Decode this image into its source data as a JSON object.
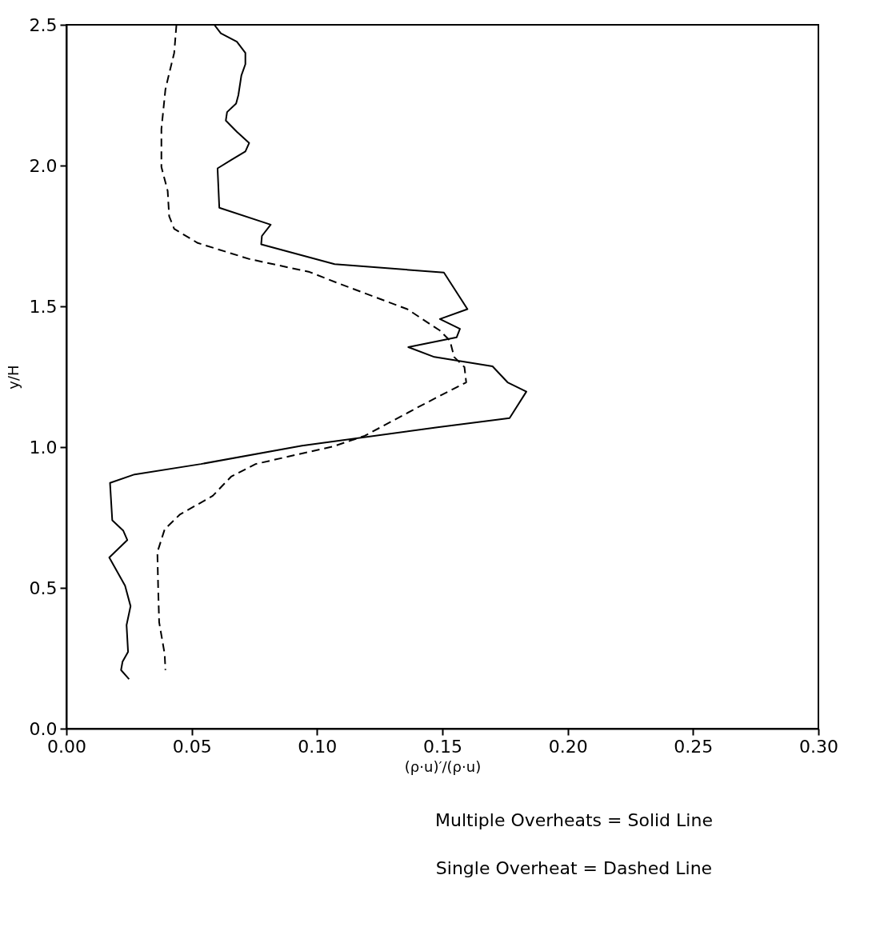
{
  "chart_data": {
    "type": "line",
    "xlabel": "(ρ·u)′/(ρ·u)",
    "ylabel": "y/H",
    "annotations": [
      "Multiple Overheats = Solid Line",
      "Single Overheat = Dashed Line"
    ],
    "xlim": [
      0,
      0.3
    ],
    "ylim": [
      0,
      2.5
    ],
    "xticks": [
      {
        "value": 0,
        "label": "0.00"
      },
      {
        "value": 0.05,
        "label": "0.05"
      },
      {
        "value": 0.1,
        "label": "0.10"
      },
      {
        "value": 0.15,
        "label": "0.15"
      },
      {
        "value": 0.2,
        "label": "0.20"
      },
      {
        "value": 0.25,
        "label": "0.25"
      },
      {
        "value": 0.3,
        "label": "0.30"
      }
    ],
    "yticks": [
      {
        "value": 0,
        "label": "0.0"
      },
      {
        "value": 0.5,
        "label": "0.5"
      },
      {
        "value": 1,
        "label": "1.0"
      },
      {
        "value": 1.5,
        "label": "1.5"
      },
      {
        "value": 2,
        "label": "2.0"
      },
      {
        "value": 2.5,
        "label": "2.5"
      }
    ],
    "grid": false,
    "marker": "none",
    "series": [
      {
        "color": "#000000",
        "line_style": "solid",
        "x": [
          0.059,
          0.0616,
          0.068,
          0.0714,
          0.0714,
          0.0698,
          0.0686,
          0.0677,
          0.0641,
          0.0636,
          0.068,
          0.0729,
          0.0714,
          0.0658,
          0.0603,
          0.061,
          0.0815,
          0.078,
          0.0777,
          0.107,
          0.1506,
          0.16,
          0.149,
          0.157,
          0.1557,
          0.1364,
          0.1468,
          0.17,
          0.176,
          0.1835,
          0.1768,
          0.148,
          0.094,
          0.0537,
          0.0272,
          0.0174,
          0.0183,
          0.0227,
          0.0243,
          0.0171,
          0.0234,
          0.0256,
          0.024,
          0.0246,
          0.0224,
          0.0218,
          0.025
        ],
        "values": [
          2.5,
          2.47,
          2.44,
          2.4,
          2.36,
          2.32,
          2.25,
          2.22,
          2.19,
          2.16,
          2.12,
          2.08,
          2.05,
          2.02,
          1.99,
          1.85,
          1.79,
          1.75,
          1.72,
          1.65,
          1.62,
          1.49,
          1.455,
          1.42,
          1.39,
          1.355,
          1.32,
          1.287,
          1.23,
          1.197,
          1.103,
          1.07,
          1.005,
          0.94,
          0.903,
          0.873,
          0.74,
          0.703,
          0.67,
          0.608,
          0.508,
          0.435,
          0.368,
          0.273,
          0.238,
          0.208,
          0.176
        ]
      },
      {
        "color": "#000000",
        "line_style": "dashed",
        "x": [
          0.0439,
          0.043,
          0.0404,
          0.0395,
          0.0379,
          0.0379,
          0.0404,
          0.041,
          0.043,
          0.0524,
          0.073,
          0.097,
          0.109,
          0.136,
          0.149,
          0.153,
          0.1547,
          0.1588,
          0.1595,
          0.1418,
          0.119,
          0.1067,
          0.0755,
          0.0657,
          0.0584,
          0.0452,
          0.0392,
          0.0363,
          0.0366,
          0.037,
          0.0392,
          0.0395
        ],
        "values": [
          2.5,
          2.4,
          2.305,
          2.27,
          2.13,
          1.995,
          1.91,
          1.82,
          1.775,
          1.725,
          1.668,
          1.622,
          1.58,
          1.49,
          1.414,
          1.378,
          1.32,
          1.284,
          1.23,
          1.149,
          1.04,
          1.003,
          0.94,
          0.895,
          0.827,
          0.76,
          0.708,
          0.627,
          0.503,
          0.378,
          0.265,
          0.208
        ]
      }
    ]
  }
}
